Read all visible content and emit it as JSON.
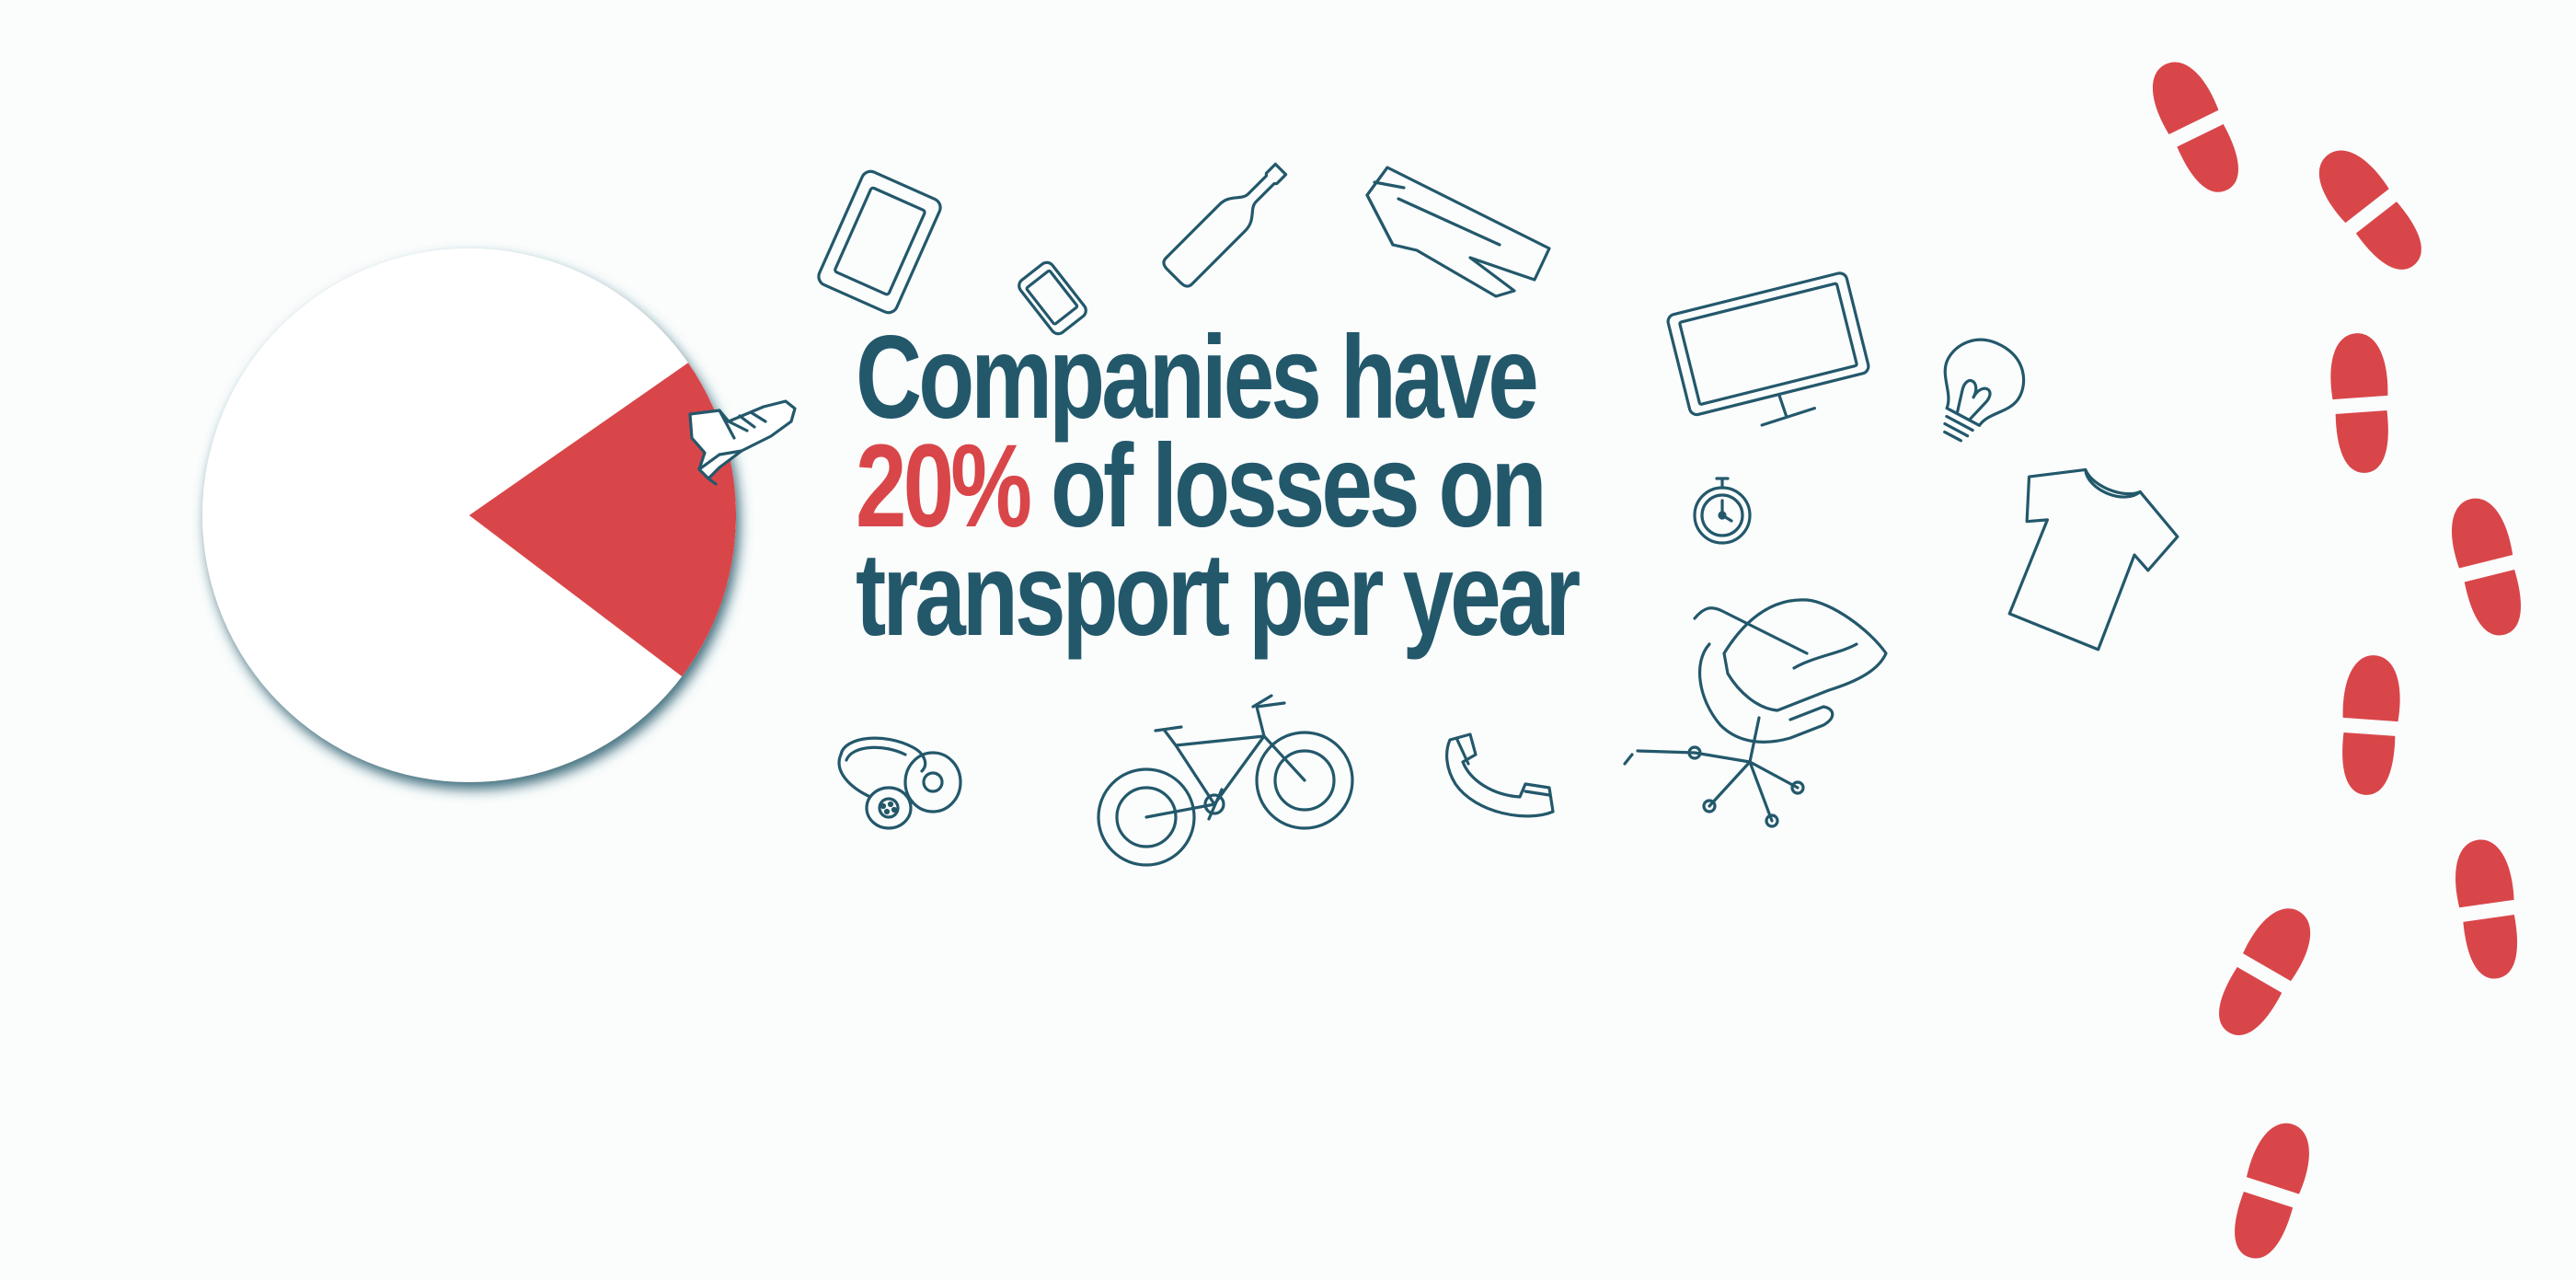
{
  "headline": {
    "line1": "Companies have",
    "percent": "20%",
    "line2_rest": " of losses on",
    "line3": "transport per year"
  },
  "chart_data": {
    "type": "pie",
    "slices": [
      {
        "label": "",
        "value": 20,
        "color": "#d94649"
      },
      {
        "label": "",
        "value": 80,
        "color": "#ffffff"
      }
    ]
  },
  "colors": {
    "ink": "#23586b",
    "accent": "#d94649",
    "background": "#fbfdfd"
  },
  "icons": [
    "tablet-icon",
    "smartphone-icon",
    "bottle-icon",
    "trousers-icon",
    "monitor-icon",
    "light-bulb-icon",
    "stopwatch-icon",
    "t-shirt-icon",
    "office-chair-icon",
    "telephone-handset-icon",
    "bicycle-icon",
    "headphones-icon",
    "sneaker-icon",
    "footprints-icon"
  ]
}
